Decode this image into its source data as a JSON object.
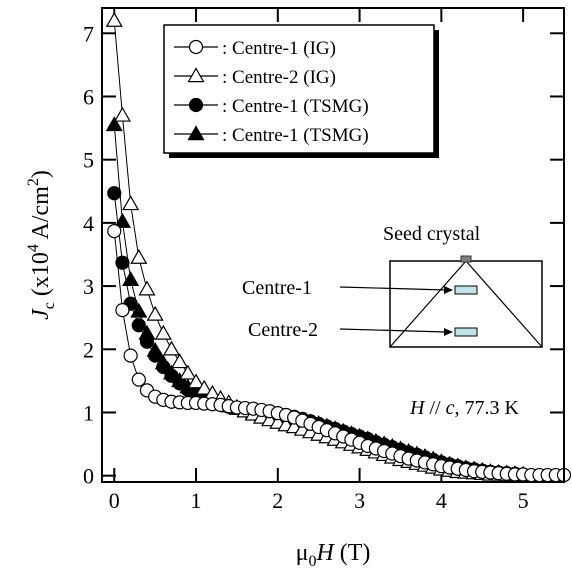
{
  "chart_data": {
    "type": "scatter",
    "title": "",
    "xlabel": {
      "prefix": "μ",
      "sub": "0",
      "italic": "H",
      "suffix": " (T)"
    },
    "ylabel": {
      "italic": "J",
      "sub": "c",
      "pre": " (x10",
      "sup1": "4",
      "mid": " A/cm",
      "sup2": "2",
      "post": ")"
    },
    "xlim": [
      -0.15,
      5.5
    ],
    "ylim": [
      -0.1,
      7.4
    ],
    "x_ticks": [
      0,
      1,
      2,
      3,
      4,
      5
    ],
    "y_ticks": [
      0,
      1,
      2,
      3,
      4,
      5,
      6,
      7
    ],
    "x_tick_labels": [
      "0",
      "1",
      "2",
      "3",
      "4",
      "5"
    ],
    "y_tick_labels": [
      "0",
      "1",
      "2",
      "3",
      "4",
      "5",
      "6",
      "7"
    ],
    "legend_position": "top-center",
    "series": [
      {
        "name": ": Centre-1 (IG)",
        "marker": "circle-open",
        "x": [
          0.0,
          0.1,
          0.2,
          0.3,
          0.4,
          0.5,
          0.6,
          0.7,
          0.8,
          0.9,
          1.0,
          1.1,
          1.2,
          1.3,
          1.4,
          1.5,
          1.6,
          1.7,
          1.8,
          1.9,
          2.0,
          2.1,
          2.2,
          2.3,
          2.4,
          2.5,
          2.6,
          2.7,
          2.8,
          2.9,
          3.0,
          3.1,
          3.2,
          3.3,
          3.4,
          3.5,
          3.6,
          3.7,
          3.8,
          3.9,
          4.0,
          4.1,
          4.2,
          4.3,
          4.4,
          4.5,
          4.6,
          4.7,
          4.8,
          4.9,
          5.0,
          5.1,
          5.2,
          5.3,
          5.4,
          5.5
        ],
        "y": [
          3.87,
          2.62,
          1.9,
          1.52,
          1.35,
          1.25,
          1.2,
          1.17,
          1.16,
          1.15,
          1.15,
          1.14,
          1.13,
          1.12,
          1.1,
          1.08,
          1.07,
          1.06,
          1.04,
          1.02,
          0.99,
          0.96,
          0.92,
          0.87,
          0.82,
          0.77,
          0.72,
          0.67,
          0.62,
          0.57,
          0.52,
          0.47,
          0.43,
          0.39,
          0.35,
          0.31,
          0.27,
          0.24,
          0.21,
          0.18,
          0.15,
          0.13,
          0.11,
          0.09,
          0.07,
          0.06,
          0.05,
          0.04,
          0.03,
          0.02,
          0.02,
          0.01,
          0.01,
          0.01,
          0.01,
          0.01
        ]
      },
      {
        "name": ": Centre-2 (IG)",
        "marker": "triangle-open",
        "x": [
          0.0,
          0.1,
          0.2,
          0.3,
          0.4,
          0.5,
          0.6,
          0.7,
          0.8,
          0.9,
          1.0,
          1.1,
          1.2,
          1.3,
          1.4,
          1.5,
          1.6,
          1.7,
          1.8,
          1.9,
          2.0,
          2.1,
          2.2,
          2.3,
          2.4,
          2.5,
          2.6,
          2.7,
          2.8,
          2.9,
          3.0,
          3.1,
          3.2,
          3.3,
          3.4,
          3.5,
          3.6,
          3.7,
          3.8,
          3.9,
          4.0,
          4.1,
          4.2,
          4.3,
          4.4,
          4.5,
          4.6,
          4.7,
          4.8,
          4.9,
          5.0
        ],
        "y": [
          7.2,
          5.7,
          4.3,
          3.45,
          2.95,
          2.55,
          2.25,
          2.0,
          1.8,
          1.62,
          1.48,
          1.38,
          1.3,
          1.22,
          1.15,
          1.08,
          1.02,
          0.97,
          0.92,
          0.88,
          0.84,
          0.8,
          0.77,
          0.73,
          0.69,
          0.65,
          0.61,
          0.57,
          0.53,
          0.49,
          0.45,
          0.41,
          0.37,
          0.33,
          0.29,
          0.25,
          0.22,
          0.19,
          0.16,
          0.13,
          0.1,
          0.08,
          0.06,
          0.05,
          0.04,
          0.03,
          0.02,
          0.02,
          0.01,
          0.01,
          0.01
        ]
      },
      {
        "name": ": Centre-1 (TSMG)",
        "marker": "circle-filled",
        "x": [
          0.0,
          0.1,
          0.2,
          0.3,
          0.4,
          0.5,
          0.6,
          0.7,
          0.8,
          0.9,
          1.0,
          1.1,
          1.2,
          1.3,
          1.4,
          1.5,
          1.6,
          1.7,
          1.8,
          1.9,
          2.0,
          2.1,
          2.2,
          2.3,
          2.4,
          2.5,
          2.6,
          2.7,
          2.8,
          2.9,
          3.0,
          3.1,
          3.2,
          3.3,
          3.4,
          3.5,
          3.6,
          3.7,
          3.8,
          3.9,
          4.0,
          4.1,
          4.2,
          4.3,
          4.4,
          4.5,
          4.6,
          4.7,
          4.8,
          4.9,
          5.0
        ],
        "y": [
          4.47,
          3.37,
          2.72,
          2.38,
          2.12,
          1.9,
          1.72,
          1.58,
          1.46,
          1.36,
          1.28,
          1.21,
          1.16,
          1.12,
          1.09,
          1.07,
          1.05,
          1.03,
          1.01,
          1.0,
          0.98,
          0.96,
          0.93,
          0.9,
          0.86,
          0.82,
          0.78,
          0.74,
          0.7,
          0.66,
          0.62,
          0.58,
          0.53,
          0.49,
          0.45,
          0.41,
          0.37,
          0.33,
          0.29,
          0.25,
          0.21,
          0.18,
          0.15,
          0.12,
          0.1,
          0.08,
          0.06,
          0.05,
          0.04,
          0.03,
          0.02
        ]
      },
      {
        "name": ": Centre-1 (TSMG)",
        "marker": "triangle-filled",
        "x": [
          0.0,
          0.1,
          0.2,
          0.3,
          0.4,
          0.5,
          0.6,
          0.7,
          0.8,
          0.9,
          1.0,
          1.1,
          1.2,
          1.3,
          1.4,
          1.5,
          1.6,
          1.7,
          1.8,
          1.9,
          2.0,
          2.1,
          2.2,
          2.3,
          2.4,
          2.5,
          2.6,
          2.7,
          2.8,
          2.9,
          3.0,
          3.1,
          3.2,
          3.3,
          3.4,
          3.5,
          3.6,
          3.7,
          3.8,
          3.9,
          4.0,
          4.1,
          4.2,
          4.3,
          4.4,
          4.5,
          4.6,
          4.7,
          4.8,
          4.9,
          5.0
        ],
        "y": [
          5.55,
          4.02,
          3.1,
          2.6,
          2.25,
          1.98,
          1.78,
          1.62,
          1.5,
          1.4,
          1.32,
          1.25,
          1.19,
          1.14,
          1.1,
          1.06,
          1.02,
          0.99,
          0.97,
          0.95,
          0.93,
          0.92,
          0.9,
          0.88,
          0.85,
          0.82,
          0.78,
          0.74,
          0.7,
          0.66,
          0.62,
          0.58,
          0.54,
          0.5,
          0.46,
          0.42,
          0.38,
          0.34,
          0.3,
          0.26,
          0.22,
          0.18,
          0.15,
          0.12,
          0.1,
          0.08,
          0.06,
          0.05,
          0.04,
          0.03,
          0.02
        ]
      }
    ],
    "annotations": {
      "condition": {
        "italic1": "H",
        "mid": " // ",
        "italic2": "c",
        "rest": ", 77.3 K"
      },
      "inset": {
        "title": "Seed crystal",
        "label1": "Centre-1",
        "label2": "Centre-2",
        "sample_color": "#bfe3e6",
        "seed_color": "#808080"
      }
    }
  }
}
